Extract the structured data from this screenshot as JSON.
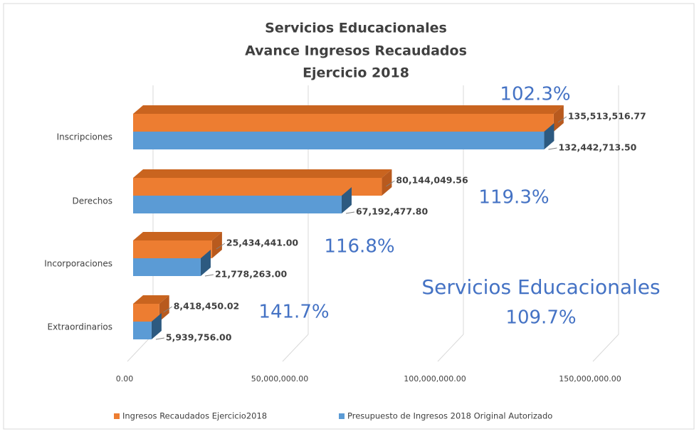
{
  "chart_data": {
    "type": "bar3d",
    "orientation": "horizontal",
    "title": [
      "Servicios Educacionales",
      "Avance Ingresos Recaudados",
      "Ejercicio 2018"
    ],
    "categories": [
      "Inscripciones",
      "Derechos",
      "Incorporaciones",
      "Extraordinarios"
    ],
    "series": [
      {
        "name": "Ingresos Recaudados Ejercicio2018",
        "color": "#ed7d31",
        "values": [
          135513516.77,
          80144049.56,
          25434441.0,
          8418450.02
        ],
        "value_labels": [
          "135,513,516.77",
          "80,144,049.56",
          "25,434,441.00",
          "8,418,450.02"
        ]
      },
      {
        "name": "Presupuesto de Ingresos 2018 Original Autorizado",
        "color": "#5b9bd5",
        "values": [
          132442713.5,
          67192477.8,
          21778263.0,
          5939756.0
        ],
        "value_labels": [
          "132,442,713.50",
          "67,192,477.80",
          "21,778,263.00",
          "5,939,756.00"
        ]
      }
    ],
    "xlim": [
      0,
      150000000
    ],
    "xticks": [
      {
        "value": 0,
        "label": "0.00"
      },
      {
        "value": 50000000,
        "label": "50,000,000.00"
      },
      {
        "value": 100000000,
        "label": "100,000,000.00"
      },
      {
        "value": 150000000,
        "label": "150,000,000.00"
      }
    ],
    "grid": true,
    "legend": "bottom",
    "annotations": [
      "102.3%",
      "119.3%",
      "116.8%",
      "141.7%",
      "Servicios Educacionales",
      "109.7%"
    ]
  }
}
